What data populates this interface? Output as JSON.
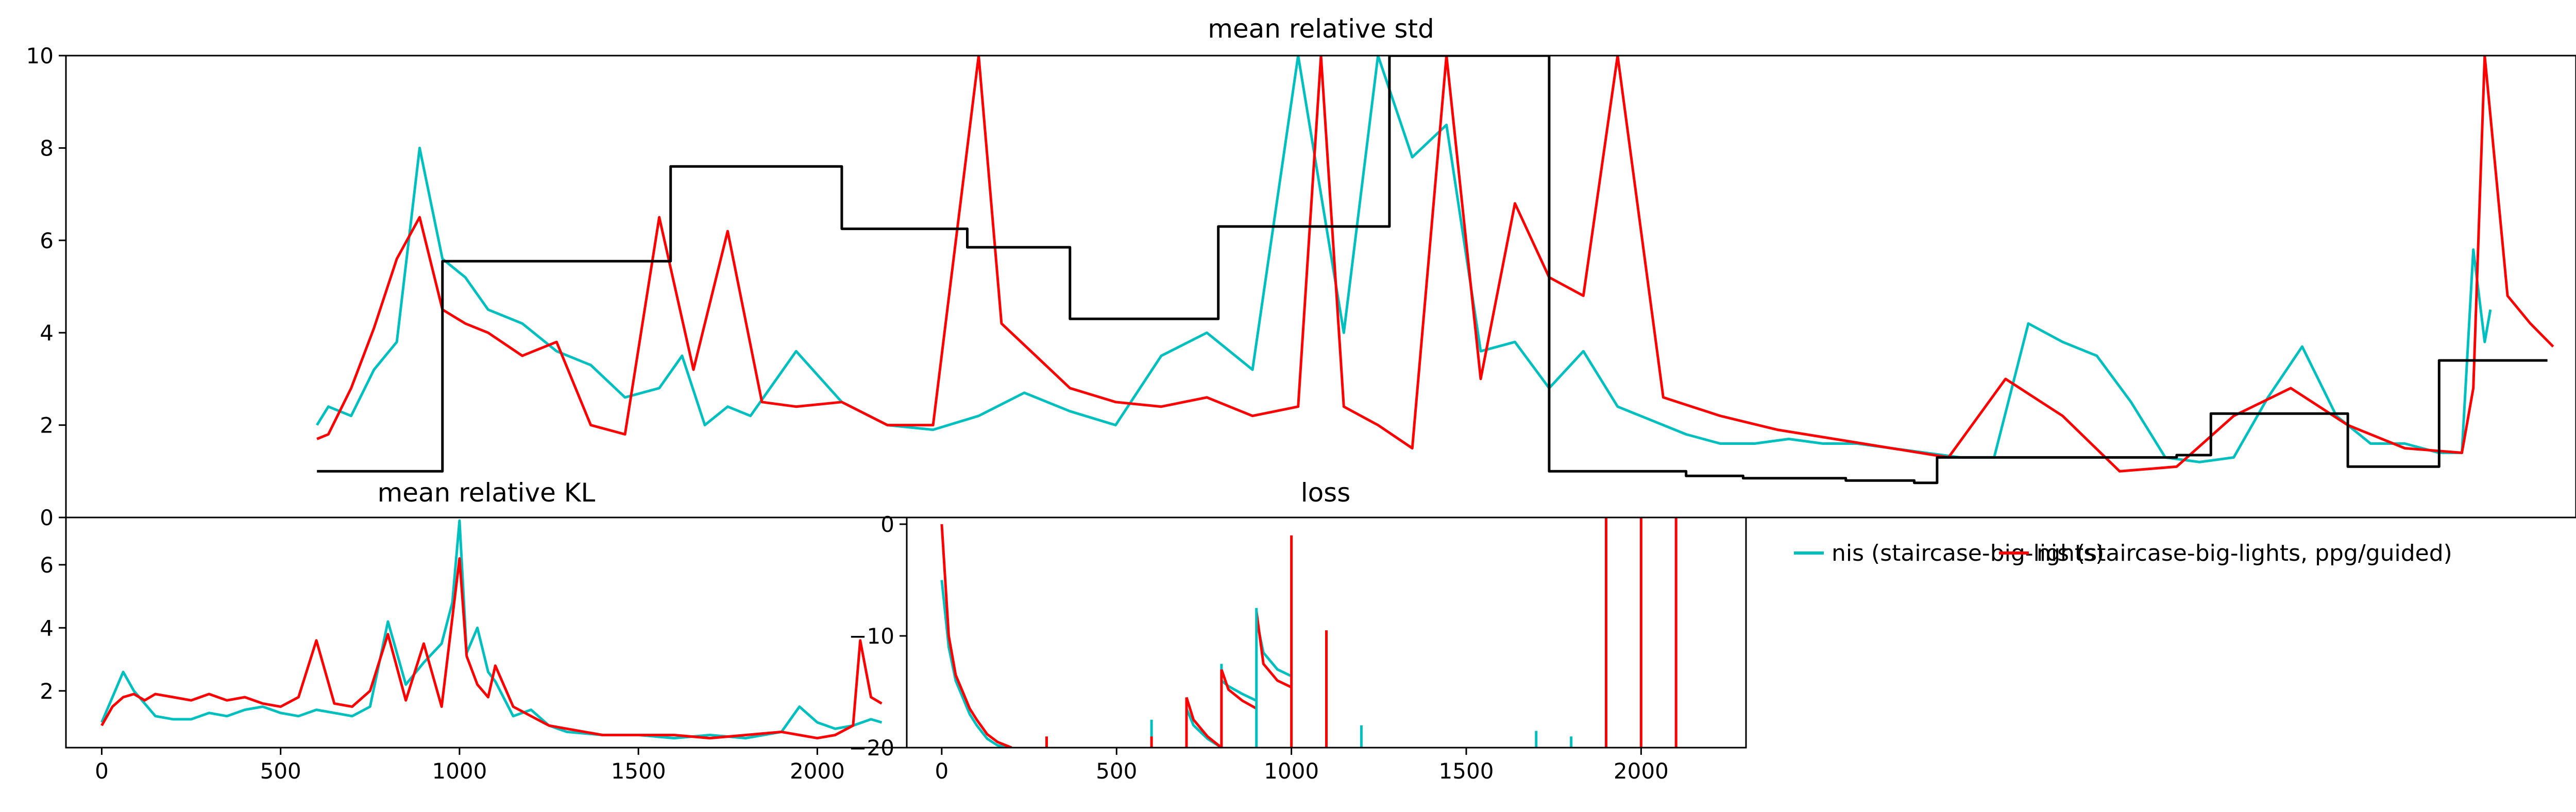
{
  "colors": {
    "nis": "#00bfbf",
    "ppg": "#ff0000",
    "target": "#000000",
    "axes": "#000000",
    "background": "#ffffff"
  },
  "chart_data": [
    {
      "id": "std",
      "type": "line",
      "title": "mean relative std",
      "xlabel": "",
      "ylabel": "",
      "xlim": [
        0,
        2200
      ],
      "ylim": [
        0,
        10
      ],
      "grid": false,
      "yticks": [
        "0",
        "2",
        "4",
        "6",
        "8",
        "10"
      ],
      "xticks": [],
      "series": [
        {
          "key": "nis",
          "x": [
            220,
            230,
            250,
            270,
            290,
            310,
            330,
            350,
            370,
            400,
            430,
            460,
            490,
            520,
            540,
            560,
            580,
            600,
            640,
            680,
            720,
            760,
            800,
            840,
            880,
            920,
            960,
            1000,
            1040,
            1080,
            1120,
            1150,
            1180,
            1210,
            1240,
            1270,
            1300,
            1330,
            1360,
            1390,
            1420,
            1450,
            1480,
            1510,
            1540,
            1570,
            1600,
            1630,
            1660,
            1690,
            1720,
            1750,
            1780,
            1810,
            1840,
            1870,
            1900,
            1930,
            1960,
            1990,
            2020,
            2050,
            2080,
            2100,
            2110,
            2120,
            2125
          ],
          "y": [
            2.0,
            2.4,
            2.2,
            3.2,
            3.8,
            8.0,
            5.6,
            5.2,
            4.5,
            4.2,
            3.6,
            3.3,
            2.6,
            2.8,
            3.5,
            2.0,
            2.4,
            2.2,
            3.6,
            2.5,
            2.0,
            1.9,
            2.2,
            2.7,
            2.3,
            2.0,
            3.5,
            4.0,
            3.2,
            10.0,
            4.0,
            10.0,
            7.8,
            8.5,
            3.6,
            3.8,
            2.8,
            3.6,
            2.4,
            2.1,
            1.8,
            1.6,
            1.6,
            1.7,
            1.6,
            1.6,
            1.5,
            1.4,
            1.3,
            1.3,
            4.2,
            3.8,
            3.5,
            2.5,
            1.3,
            1.2,
            1.3,
            2.6,
            3.7,
            2.2,
            1.6,
            1.6,
            1.4,
            1.4,
            5.8,
            3.8,
            4.5
          ]
        },
        {
          "key": "ppg",
          "x": [
            220,
            230,
            250,
            270,
            290,
            310,
            330,
            350,
            370,
            400,
            430,
            460,
            490,
            520,
            550,
            580,
            610,
            640,
            680,
            720,
            760,
            800,
            820,
            850,
            880,
            920,
            960,
            1000,
            1040,
            1080,
            1100,
            1120,
            1150,
            1180,
            1210,
            1240,
            1270,
            1300,
            1330,
            1360,
            1400,
            1450,
            1500,
            1550,
            1600,
            1650,
            1700,
            1750,
            1800,
            1850,
            1900,
            1950,
            2000,
            2050,
            2100,
            2110,
            2120,
            2140,
            2160,
            2180
          ],
          "y": [
            1.7,
            1.8,
            2.8,
            4.1,
            5.6,
            6.5,
            4.5,
            4.2,
            4.0,
            3.5,
            3.8,
            2.0,
            1.8,
            6.5,
            3.2,
            6.2,
            2.5,
            2.4,
            2.5,
            2.0,
            2.0,
            10.0,
            4.2,
            3.5,
            2.8,
            2.5,
            2.4,
            2.6,
            2.2,
            2.4,
            10.0,
            2.4,
            2.0,
            1.5,
            10.0,
            3.0,
            6.8,
            5.2,
            4.8,
            10.0,
            2.6,
            2.2,
            1.9,
            1.7,
            1.5,
            1.3,
            3.0,
            2.2,
            1.0,
            1.1,
            2.2,
            2.8,
            2.0,
            1.5,
            1.4,
            2.8,
            10.0,
            4.8,
            4.2,
            3.7
          ]
        },
        {
          "key": "target",
          "x": [
            220,
            330,
            330,
            530,
            530,
            680,
            680,
            790,
            790,
            880,
            880,
            1010,
            1010,
            1160,
            1160,
            1300,
            1300,
            1420,
            1420,
            1470,
            1470,
            1560,
            1560,
            1620,
            1620,
            1640,
            1640,
            1850,
            1850,
            1880,
            1880,
            2000,
            2000,
            2080,
            2080,
            2175
          ],
          "y": [
            1.0,
            1.0,
            5.55,
            5.55,
            7.6,
            7.6,
            6.25,
            6.25,
            5.85,
            5.85,
            4.3,
            4.3,
            6.3,
            6.3,
            10.0,
            10.0,
            1.0,
            1.0,
            0.9,
            0.9,
            0.85,
            0.85,
            0.8,
            0.8,
            0.75,
            0.75,
            1.3,
            1.3,
            1.35,
            1.35,
            2.25,
            2.25,
            1.1,
            1.1,
            3.4,
            3.4
          ]
        }
      ]
    },
    {
      "id": "kl",
      "type": "line",
      "title": "mean relative KL",
      "xlabel": "",
      "ylabel": "",
      "xlim": [
        -100,
        2250
      ],
      "ylim": [
        0.2,
        7.5
      ],
      "grid": false,
      "yticks": [
        "2",
        "4",
        "6"
      ],
      "xticks": [
        "0",
        "500",
        "1000",
        "1500",
        "2000"
      ],
      "series": [
        {
          "key": "nis",
          "x": [
            0,
            30,
            60,
            90,
            120,
            150,
            200,
            250,
            300,
            350,
            400,
            450,
            500,
            550,
            600,
            650,
            700,
            750,
            800,
            850,
            900,
            950,
            980,
            1000,
            1020,
            1050,
            1080,
            1100,
            1150,
            1200,
            1250,
            1300,
            1400,
            1500,
            1600,
            1700,
            1800,
            1900,
            1950,
            2000,
            2050,
            2100,
            2150,
            2180
          ],
          "y": [
            1.0,
            1.8,
            2.6,
            2.0,
            1.6,
            1.2,
            1.1,
            1.1,
            1.3,
            1.2,
            1.4,
            1.5,
            1.3,
            1.2,
            1.4,
            1.3,
            1.2,
            1.5,
            4.2,
            2.2,
            2.9,
            3.5,
            4.8,
            7.4,
            3.2,
            4.0,
            2.6,
            2.3,
            1.2,
            1.4,
            0.9,
            0.7,
            0.6,
            0.6,
            0.5,
            0.6,
            0.5,
            0.7,
            1.5,
            1.0,
            0.8,
            0.9,
            1.1,
            1.0
          ]
        },
        {
          "key": "ppg",
          "x": [
            0,
            30,
            60,
            90,
            120,
            150,
            200,
            250,
            300,
            350,
            400,
            450,
            500,
            550,
            600,
            650,
            700,
            750,
            800,
            850,
            900,
            950,
            1000,
            1020,
            1050,
            1080,
            1100,
            1150,
            1200,
            1250,
            1300,
            1400,
            1500,
            1600,
            1700,
            1800,
            1900,
            1950,
            2000,
            2050,
            2100,
            2120,
            2150,
            2180
          ],
          "y": [
            0.9,
            1.5,
            1.8,
            1.9,
            1.7,
            1.9,
            1.8,
            1.7,
            1.9,
            1.7,
            1.8,
            1.6,
            1.5,
            1.8,
            3.6,
            1.6,
            1.5,
            2.0,
            3.8,
            1.7,
            3.5,
            1.5,
            6.2,
            3.1,
            2.2,
            1.8,
            2.8,
            1.5,
            1.2,
            0.9,
            0.8,
            0.6,
            0.6,
            0.6,
            0.5,
            0.6,
            0.7,
            0.6,
            0.5,
            0.6,
            0.9,
            3.6,
            1.8,
            1.6
          ]
        }
      ]
    },
    {
      "id": "loss",
      "type": "line",
      "title": "loss",
      "xlabel": "",
      "ylabel": "",
      "xlim": [
        -100,
        2300
      ],
      "ylim": [
        -20,
        0.6
      ],
      "grid": false,
      "yticks": [
        "0",
        "−10",
        "−20"
      ],
      "xticks": [
        "0",
        "500",
        "1000",
        "1500",
        "2000"
      ],
      "series": [
        {
          "key": "nis",
          "x": [
            0,
            20,
            40,
            60,
            80,
            100,
            130,
            160,
            200
          ],
          "y": [
            -5,
            -11,
            -14,
            -15.5,
            -17,
            -18,
            -19.2,
            -19.8,
            -20
          ]
        },
        {
          "key": "nis",
          "x": [
            700,
            720,
            760,
            800
          ],
          "y": [
            -16.5,
            -18,
            -19.2,
            -20
          ]
        },
        {
          "key": "nis",
          "x": [
            800,
            820,
            860,
            900
          ],
          "y": [
            -14,
            -14.5,
            -15.2,
            -15.8
          ]
        },
        {
          "key": "nis",
          "x": [
            900,
            920,
            960,
            1000
          ],
          "y": [
            -8.5,
            -11.5,
            -13,
            -13.6
          ]
        },
        {
          "key": "ppg",
          "x": [
            0,
            20,
            40,
            60,
            80,
            100,
            130,
            160,
            200
          ],
          "y": [
            0,
            -10,
            -13.5,
            -15,
            -16.5,
            -17.5,
            -18.8,
            -19.5,
            -20
          ]
        },
        {
          "key": "ppg",
          "x": [
            700,
            720,
            760,
            800
          ],
          "y": [
            -15.5,
            -17.5,
            -19,
            -20
          ]
        },
        {
          "key": "ppg",
          "x": [
            800,
            820,
            860,
            900
          ],
          "y": [
            -13,
            -14.8,
            -15.8,
            -16.5
          ]
        },
        {
          "key": "ppg",
          "x": [
            900,
            920,
            960,
            1000
          ],
          "y": [
            -7.8,
            -12.5,
            -14,
            -14.6
          ]
        }
      ],
      "spikes": [
        {
          "key": "ppg",
          "x": 300,
          "top": -19
        },
        {
          "key": "nis",
          "x": 600,
          "top": -17.5
        },
        {
          "key": "ppg",
          "x": 600,
          "top": -19
        },
        {
          "key": "ppg",
          "x": 700,
          "top": -15.5
        },
        {
          "key": "nis",
          "x": 800,
          "top": -12.5
        },
        {
          "key": "ppg",
          "x": 800,
          "top": -13
        },
        {
          "key": "nis",
          "x": 900,
          "top": -7.5
        },
        {
          "key": "ppg",
          "x": 1000,
          "top": -1
        },
        {
          "key": "ppg",
          "x": 1100,
          "top": -9.5
        },
        {
          "key": "nis",
          "x": 1200,
          "top": -18
        },
        {
          "key": "nis",
          "x": 1700,
          "top": -18.5
        },
        {
          "key": "nis",
          "x": 1800,
          "top": -19
        },
        {
          "key": "ppg",
          "x": 1900,
          "top": 0.6
        },
        {
          "key": "ppg",
          "x": 2000,
          "top": 0.6
        },
        {
          "key": "ppg",
          "x": 2100,
          "top": 0.6
        }
      ]
    }
  ],
  "legend": {
    "placement": "upper-left",
    "entries": [
      {
        "key": "nis",
        "label": "nis (staircase-big-lights)"
      },
      {
        "key": "ppg",
        "label": "nis (staircase-big-lights, ppg/guided)"
      }
    ]
  }
}
